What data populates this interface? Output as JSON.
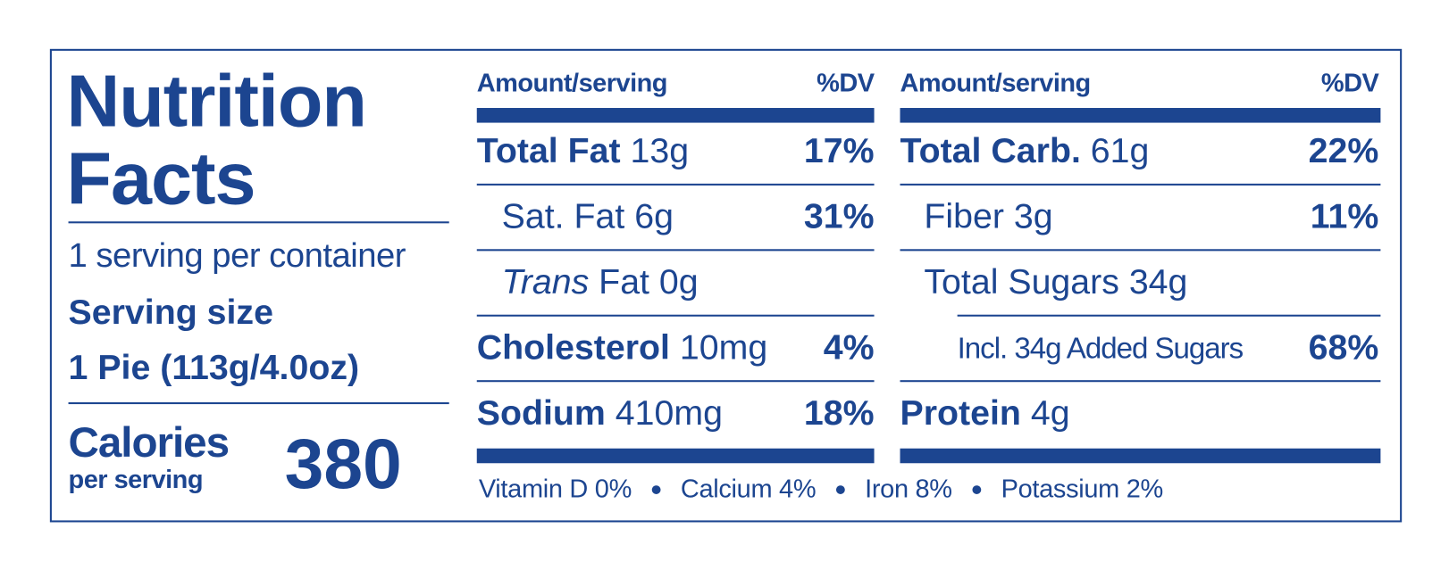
{
  "label": {
    "title": "Nutrition Facts",
    "servings_per_container": "1 serving per container",
    "serving_size_label": "Serving size",
    "serving_size": "1 Pie (113g/4.0oz)",
    "calories_label": "Calories",
    "calories_sublabel": "per serving",
    "calories": 380,
    "columns": [
      {
        "header_amount": "Amount/serving",
        "header_dv": "%DV",
        "rows": [
          {
            "name": "Total Fat",
            "amount": "13g",
            "dv": "17%"
          },
          {
            "name": "Sat. Fat",
            "amount": "6g",
            "dv": "31%"
          },
          {
            "name_italic": "Trans",
            "name": "Fat",
            "amount": "0g"
          },
          {
            "name": "Cholesterol",
            "amount": "10mg",
            "dv": "4%"
          },
          {
            "name": "Sodium",
            "amount": "410mg",
            "dv": "18%"
          }
        ]
      },
      {
        "header_amount": "Amount/serving",
        "header_dv": "%DV",
        "rows": [
          {
            "name": "Total Carb.",
            "amount": "61g",
            "dv": "22%"
          },
          {
            "name": "Fiber",
            "amount": "3g",
            "dv": "11%"
          },
          {
            "name": "Total Sugars",
            "amount": "34g"
          },
          {
            "name": "Incl. 34g Added Sugars",
            "dv": "68%"
          },
          {
            "name": "Protein",
            "amount": "4g"
          }
        ]
      }
    ],
    "vitamins": [
      "Vitamin D 0%",
      "Calcium 4%",
      "Iron 8%",
      "Potassium 2%"
    ]
  }
}
